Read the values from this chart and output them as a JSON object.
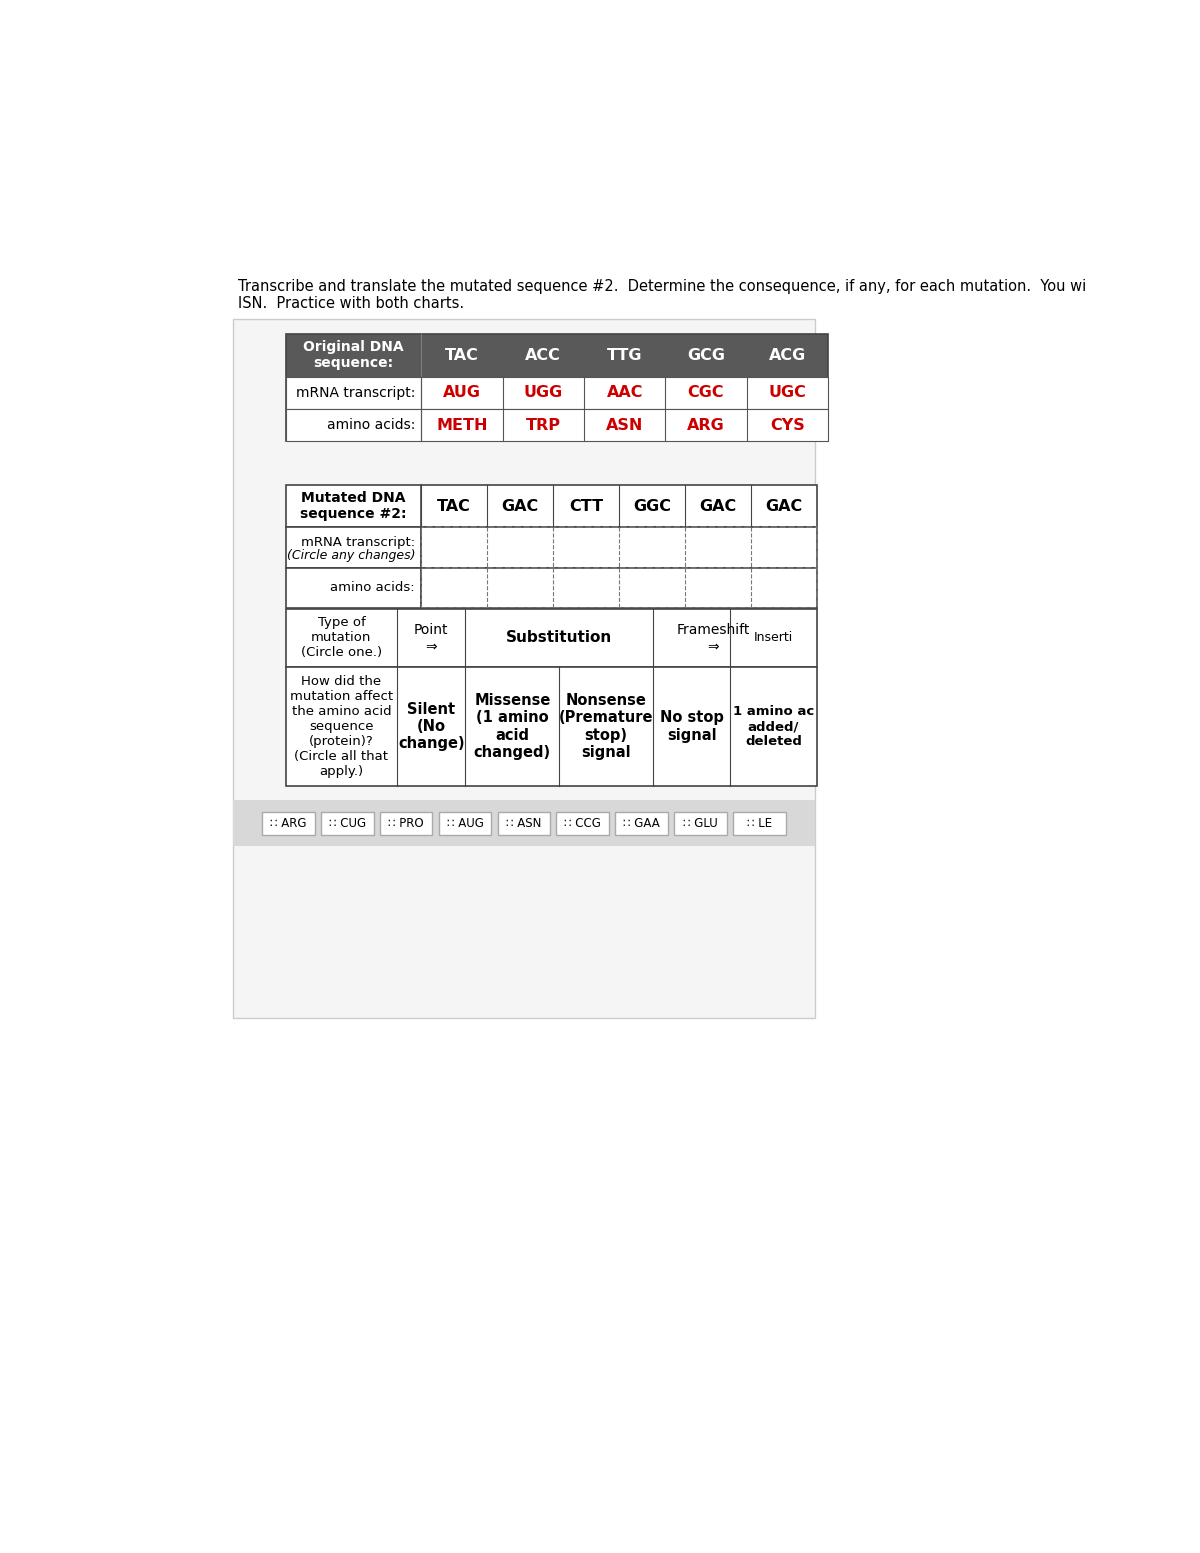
{
  "title_text1": "Transcribe and translate the mutated sequence #2.  Determine the consequence, if any, for each mutation.  You wi",
  "title_text2": "ISN.  Practice with both charts.",
  "bg_color": "#ffffff",
  "container_bg": "#f0f0f0",
  "table1_header_bg": "#595959",
  "table1_header_fg": "#ffffff",
  "red_color": "#cc0000",
  "black": "#000000",
  "table1_label_col": "Original DNA\nsequence:",
  "table1_row1_label": "mRNA transcript:",
  "table1_row2_label": "amino acids:",
  "orig_dna": [
    "TAC",
    "ACC",
    "TTG",
    "GCG",
    "ACG"
  ],
  "orig_mrna": [
    "AUG",
    "UGG",
    "AAC",
    "CGC",
    "UGC"
  ],
  "orig_aa": [
    "METH",
    "TRP",
    "ASN",
    "ARG",
    "CYS"
  ],
  "table2_label_col": "Mutated DNA\nsequence #2:",
  "table2_row1_label_line1": "mRNA transcript:",
  "table2_row1_label_line2": "(Circle any changes)",
  "table2_row2_label": "amino acids:",
  "mut_dna": [
    "TAC",
    "GAC",
    "CTT",
    "GGC",
    "GAC",
    "GAC"
  ],
  "type_mutation_label": "Type of\nmutation\n(Circle one.)",
  "point_label": "Point\n⇒",
  "substitution_label": "Substitution",
  "frameshift_label": "Frameshift\n⇒",
  "insertion_label": "Inserti",
  "how_label": "How did the\nmutation affect\nthe amino acid\nsequence\n(protein)?\n(Circle all that\napply.)",
  "silent_label": "Silent\n(No\nchange)",
  "missense_label": "Missense\n(1 amino\nacid\nchanged)",
  "nonsense_label": "Nonsense\n(Premature\nstop)\nsignal",
  "nostop_label": "No stop\nsignal",
  "oneaa_label": "1 amino ac\nadded/\ndeleted",
  "drag_items": [
    "∷ ARG",
    "∷ CUG",
    "∷ PRO",
    "∷ AUG",
    "∷ ASN",
    "∷ CCG",
    "∷ GAA",
    "∷ GLU",
    "∷ LE"
  ],
  "drag_bg": "#d8d8d8",
  "drag_item_bg": "#ffffff",
  "drag_item_border": "#aaaaaa"
}
